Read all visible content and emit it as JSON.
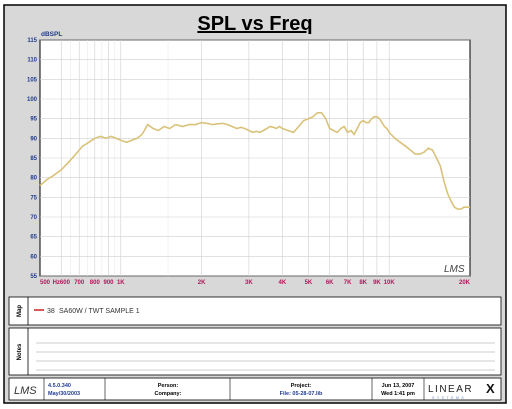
{
  "chart_data": {
    "type": "line",
    "title": "SPL vs Freq",
    "ylabel": "dBSPL",
    "xscale": "log",
    "xlim": [
      500,
      20000
    ],
    "ylim": [
      55,
      115
    ],
    "yticks": [
      55,
      60,
      65,
      70,
      75,
      80,
      85,
      90,
      95,
      100,
      105,
      110,
      115
    ],
    "xticks": [
      {
        "value": 500,
        "label": "500"
      },
      {
        "value": 600,
        "label": "Hz600"
      },
      {
        "value": 700,
        "label": "700"
      },
      {
        "value": 800,
        "label": "800"
      },
      {
        "value": 900,
        "label": "900"
      },
      {
        "value": 1000,
        "label": "1K"
      },
      {
        "value": 2000,
        "label": "2K"
      },
      {
        "value": 3000,
        "label": "3K"
      },
      {
        "value": 4000,
        "label": "4K"
      },
      {
        "value": 5000,
        "label": "5K"
      },
      {
        "value": 6000,
        "label": "6K"
      },
      {
        "value": 7000,
        "label": "7K"
      },
      {
        "value": 8000,
        "label": "8K"
      },
      {
        "value": 9000,
        "label": "9K"
      },
      {
        "value": 10000,
        "label": "10K"
      },
      {
        "value": 20000,
        "label": "20K"
      }
    ],
    "grid": true,
    "series": [
      {
        "name": "SA60W / TWT SAMPLE 1",
        "color": "#d9c27a",
        "x": [
          500,
          530,
          560,
          600,
          640,
          680,
          720,
          760,
          800,
          840,
          880,
          920,
          960,
          1000,
          1050,
          1100,
          1150,
          1200,
          1260,
          1320,
          1380,
          1450,
          1520,
          1600,
          1700,
          1800,
          1900,
          2000,
          2100,
          2200,
          2300,
          2400,
          2500,
          2600,
          2700,
          2800,
          2900,
          3000,
          3100,
          3200,
          3300,
          3400,
          3500,
          3600,
          3700,
          3800,
          3900,
          4000,
          4200,
          4400,
          4600,
          4800,
          5000,
          5200,
          5400,
          5600,
          5800,
          6000,
          6200,
          6400,
          6600,
          6800,
          7000,
          7200,
          7400,
          7600,
          7800,
          8000,
          8200,
          8400,
          8600,
          8800,
          9000,
          9200,
          9400,
          9600,
          9800,
          10000,
          10500,
          11000,
          11500,
          12000,
          12500,
          13000,
          13500,
          14000,
          14500,
          15000,
          15500,
          16000,
          16500,
          17000,
          17500,
          18000,
          18500,
          19000,
          19500,
          20000
        ],
        "values": [
          78.0,
          79.5,
          80.5,
          82.0,
          84.0,
          86.0,
          88.0,
          89.0,
          90.0,
          90.5,
          90.0,
          90.5,
          90.0,
          89.5,
          89.0,
          89.5,
          90.0,
          91.0,
          93.5,
          92.5,
          92.0,
          93.0,
          92.5,
          93.5,
          93.0,
          93.5,
          93.5,
          94.0,
          93.8,
          93.5,
          93.7,
          93.8,
          93.5,
          93.0,
          92.5,
          92.8,
          92.5,
          92.0,
          91.5,
          91.8,
          91.5,
          92.0,
          92.5,
          93.0,
          92.8,
          92.5,
          93.0,
          92.5,
          92.0,
          91.5,
          93.0,
          94.5,
          95.0,
          95.5,
          96.5,
          96.5,
          95.0,
          92.5,
          92.0,
          91.5,
          92.5,
          93.0,
          91.5,
          92.0,
          91.0,
          92.5,
          94.0,
          94.5,
          94.0,
          94.0,
          95.0,
          95.5,
          95.5,
          95.0,
          94.0,
          93.0,
          92.5,
          91.5,
          90.0,
          89.0,
          88.0,
          87.0,
          86.0,
          86.0,
          86.5,
          87.5,
          87.0,
          85.0,
          83.0,
          79.0,
          76.0,
          74.0,
          72.5,
          72.0,
          72.0,
          72.5,
          72.5,
          72.5
        ]
      }
    ]
  },
  "watermark": "LMS",
  "legend": {
    "section_label": "Map",
    "entry_number": "38",
    "entry_text": "SA60W / TWT SAMPLE 1"
  },
  "notes": {
    "section_label": "Notes"
  },
  "footer": {
    "logo": "LMS",
    "version": "4.5.0.340",
    "version_date": "May/30/2003",
    "person_label": "Person:",
    "person_value": "",
    "company_label": "Company:",
    "company_value": "",
    "project_label": "Project:",
    "file_text": "File: 05-28-07.lib",
    "date_text": "Jun 13, 2007",
    "time_text": "Wed  1:41 pm",
    "brand_text": "LINEAR",
    "brand_mark": "X",
    "brand_sub": "SYSTEMS"
  },
  "colors": {
    "tick_label": "#b0185c",
    "axis_label": "#1f3b8f",
    "curve": "#d9c27a",
    "legend_line": "#cc2222",
    "grid": "#cfcfcf",
    "frame_bg": "#d8d8d8"
  }
}
